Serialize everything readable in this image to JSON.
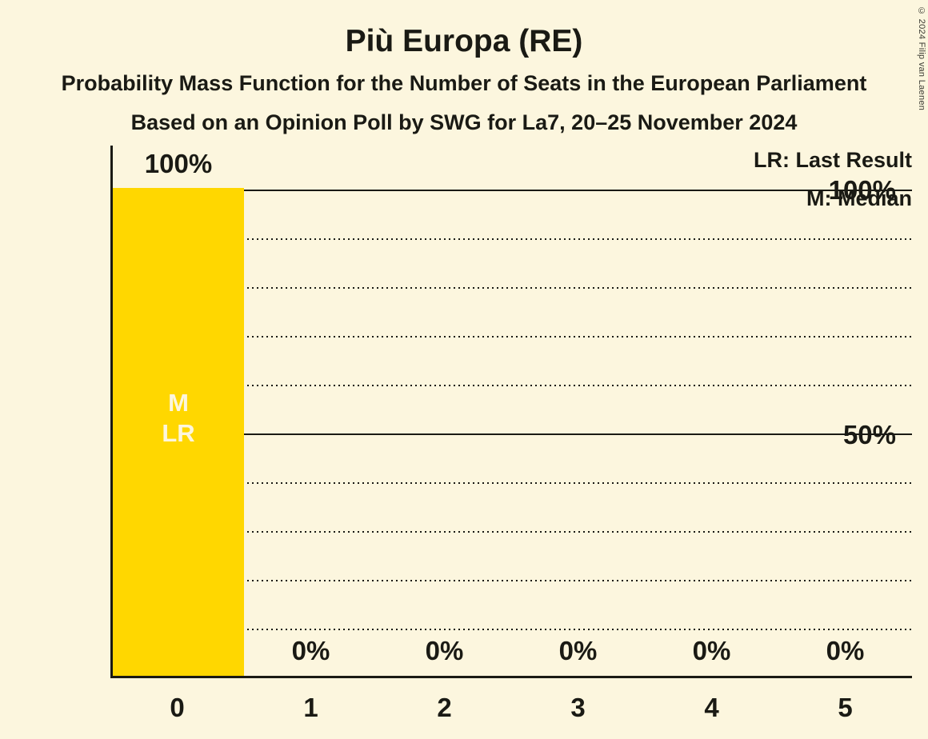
{
  "title": "Più Europa (RE)",
  "subtitle1": "Probability Mass Function for the Number of Seats in the European Parliament",
  "subtitle2": "Based on an Opinion Poll by SWG for La7, 20–25 November 2024",
  "copyright": "© 2024 Filip van Laenen",
  "legend": {
    "last_result": "LR: Last Result",
    "median": "M: Median"
  },
  "y_axis": {
    "label_100": "100%",
    "label_50": "50%"
  },
  "annotations": {
    "median_label": "M",
    "last_result_label": "LR"
  },
  "colors": {
    "bar": "#ffd700",
    "background": "#fcf6de",
    "text": "#1a1a14"
  },
  "chart_data": {
    "type": "bar",
    "categories": [
      "0",
      "1",
      "2",
      "3",
      "4",
      "5"
    ],
    "values": [
      100,
      0,
      0,
      0,
      0,
      0
    ],
    "value_labels": [
      "100%",
      "0%",
      "0%",
      "0%",
      "0%",
      "0%"
    ],
    "title": "Più Europa (RE)",
    "xlabel": "",
    "ylabel": "",
    "ylim": [
      0,
      100
    ],
    "gridlines_percent": [
      10,
      20,
      30,
      40,
      50,
      60,
      70,
      80,
      90,
      100
    ],
    "solid_gridlines_percent": [
      50,
      100
    ],
    "legend_position": "top-right",
    "median_category": "0",
    "last_result_category": "0"
  }
}
